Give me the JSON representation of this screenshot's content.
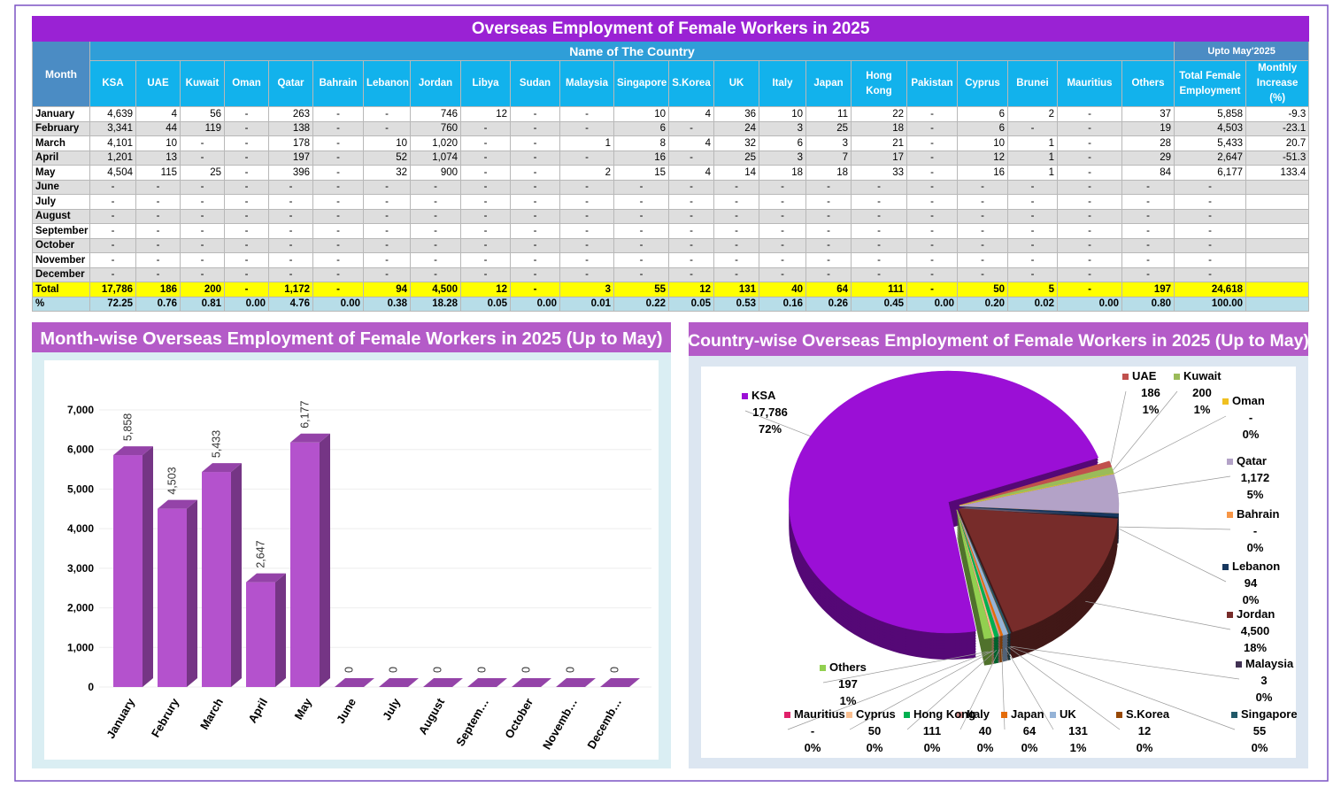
{
  "table": {
    "title": "Overseas Employment of Female Workers in 2025",
    "header": {
      "month": "Month",
      "group": "Name of The Country",
      "upto": "Upto May'2025",
      "columns": [
        "KSA",
        "UAE",
        "Kuwait",
        "Oman",
        "Qatar",
        "Bahrain",
        "Lebanon",
        "Jordan",
        "Libya",
        "Sudan",
        "Malaysia",
        "Singapore",
        "S.Korea",
        "UK",
        "Italy",
        "Japan",
        "Hong Kong",
        "Pakistan",
        "Cyprus",
        "Brunei",
        "Mauritius",
        "Others",
        "Total Female Employment",
        "Monthly Increase (%)"
      ]
    },
    "rows": [
      {
        "label": "January",
        "cells": [
          "4,639",
          "4",
          "56",
          "-",
          "263",
          "-",
          "-",
          "746",
          "12",
          "-",
          "-",
          "10",
          "4",
          "36",
          "10",
          "11",
          "22",
          "-",
          "6",
          "2",
          "-",
          "37",
          "5,858",
          "-9.3"
        ]
      },
      {
        "label": "February",
        "cells": [
          "3,341",
          "44",
          "119",
          "-",
          "138",
          "-",
          "-",
          "760",
          "-",
          "-",
          "-",
          "6",
          "-",
          "24",
          "3",
          "25",
          "18",
          "-",
          "6",
          "-",
          "-",
          "19",
          "4,503",
          "-23.1"
        ]
      },
      {
        "label": "March",
        "cells": [
          "4,101",
          "10",
          "-",
          "-",
          "178",
          "-",
          "10",
          "1,020",
          "-",
          "-",
          "1",
          "8",
          "4",
          "32",
          "6",
          "3",
          "21",
          "-",
          "10",
          "1",
          "-",
          "28",
          "5,433",
          "20.7"
        ]
      },
      {
        "label": "April",
        "cells": [
          "1,201",
          "13",
          "-",
          "-",
          "197",
          "-",
          "52",
          "1,074",
          "-",
          "-",
          "-",
          "16",
          "-",
          "25",
          "3",
          "7",
          "17",
          "-",
          "12",
          "1",
          "-",
          "29",
          "2,647",
          "-51.3"
        ]
      },
      {
        "label": "May",
        "cells": [
          "4,504",
          "115",
          "25",
          "-",
          "396",
          "-",
          "32",
          "900",
          "-",
          "-",
          "2",
          "15",
          "4",
          "14",
          "18",
          "18",
          "33",
          "-",
          "16",
          "1",
          "-",
          "84",
          "6,177",
          "133.4"
        ]
      },
      {
        "label": "June",
        "cells": [
          "-",
          "-",
          "-",
          "-",
          "-",
          "-",
          "-",
          "-",
          "-",
          "-",
          "-",
          "-",
          "-",
          "-",
          "-",
          "-",
          "-",
          "-",
          "-",
          "-",
          "-",
          "-",
          "-"
        ]
      },
      {
        "label": "July",
        "cells": [
          "-",
          "-",
          "-",
          "-",
          "-",
          "-",
          "-",
          "-",
          "-",
          "-",
          "-",
          "-",
          "-",
          "-",
          "-",
          "-",
          "-",
          "-",
          "-",
          "-",
          "-",
          "-",
          "-"
        ]
      },
      {
        "label": "August",
        "cells": [
          "-",
          "-",
          "-",
          "-",
          "-",
          "-",
          "-",
          "-",
          "-",
          "-",
          "-",
          "-",
          "-",
          "-",
          "-",
          "-",
          "-",
          "-",
          "-",
          "-",
          "-",
          "-",
          "-"
        ]
      },
      {
        "label": "September",
        "cells": [
          "-",
          "-",
          "-",
          "-",
          "-",
          "-",
          "-",
          "-",
          "-",
          "-",
          "-",
          "-",
          "-",
          "-",
          "-",
          "-",
          "-",
          "-",
          "-",
          "-",
          "-",
          "-",
          "-"
        ]
      },
      {
        "label": "October",
        "cells": [
          "-",
          "-",
          "-",
          "-",
          "-",
          "-",
          "-",
          "-",
          "-",
          "-",
          "-",
          "-",
          "-",
          "-",
          "-",
          "-",
          "-",
          "-",
          "-",
          "-",
          "-",
          "-",
          "-"
        ]
      },
      {
        "label": "November",
        "cells": [
          "-",
          "-",
          "-",
          "-",
          "-",
          "-",
          "-",
          "-",
          "-",
          "-",
          "-",
          "-",
          "-",
          "-",
          "-",
          "-",
          "-",
          "-",
          "-",
          "-",
          "-",
          "-",
          "-"
        ]
      },
      {
        "label": "December",
        "cells": [
          "-",
          "-",
          "-",
          "-",
          "-",
          "-",
          "-",
          "-",
          "-",
          "-",
          "-",
          "-",
          "-",
          "-",
          "-",
          "-",
          "-",
          "-",
          "-",
          "-",
          "-",
          "-",
          "-"
        ]
      },
      {
        "label": "Total",
        "cells": [
          "17,786",
          "186",
          "200",
          "-",
          "1,172",
          "-",
          "94",
          "4,500",
          "12",
          "-",
          "3",
          "55",
          "12",
          "131",
          "40",
          "64",
          "111",
          "-",
          "50",
          "5",
          "-",
          "197",
          "24,618"
        ]
      },
      {
        "label": "%",
        "cells": [
          "72.25",
          "0.76",
          "0.81",
          "0.00",
          "4.76",
          "0.00",
          "0.38",
          "18.28",
          "0.05",
          "0.00",
          "0.01",
          "0.22",
          "0.05",
          "0.53",
          "0.16",
          "0.26",
          "0.45",
          "0.00",
          "0.20",
          "0.02",
          "0.00",
          "0.80",
          "100.00"
        ]
      }
    ]
  },
  "chart_data": [
    {
      "type": "bar",
      "title": "Month-wise Overseas Employment of Female Workers in 2025 (Up to May)",
      "categories": [
        "January",
        "Februry",
        "March",
        "April",
        "May",
        "June",
        "July",
        "August",
        "Septem…",
        "October",
        "Novemb…",
        "Decemb…"
      ],
      "values": [
        5858,
        4503,
        5433,
        2647,
        6177,
        0,
        0,
        0,
        0,
        0,
        0,
        0
      ],
      "value_labels": [
        "5,858",
        "4,503",
        "5,433",
        "2,647",
        "6,177",
        "0",
        "0",
        "0",
        "0",
        "0",
        "0",
        "0"
      ],
      "color": "#b452cd",
      "ylim": [
        0,
        7000
      ],
      "yticks": [
        0,
        {
          "value": 1000,
          "label": "1,000"
        },
        {
          "value": 2000,
          "label": "2,000"
        },
        {
          "value": 3000,
          "label": "3,000"
        },
        {
          "value": 4000,
          "label": "4,000"
        },
        {
          "value": 5000,
          "label": "5,000"
        },
        {
          "value": 6000,
          "label": "6,000"
        },
        {
          "value": 7000,
          "label": "7,000"
        }
      ],
      "grid": true
    },
    {
      "type": "pie",
      "title": "Country-wise Overseas Employment of Female Workers in 2025 (Up to May)",
      "categories": [
        "KSA",
        "UAE",
        "Kuwait",
        "Oman",
        "Qatar",
        "Bahrain",
        "Lebanon",
        "Jordan",
        "Malaysia",
        "Singapore",
        "S.Korea",
        "UK",
        "Japan",
        "Italy",
        "Hong Kong",
        "Cyprus",
        "Mauritius",
        "Others"
      ],
      "values": [
        17786,
        186,
        200,
        0,
        1172,
        0,
        94,
        4500,
        3,
        55,
        12,
        131,
        64,
        40,
        111,
        50,
        0,
        197
      ],
      "value_labels": [
        "17,786",
        "186",
        "200",
        "-",
        "1,172",
        "-",
        "94",
        "4,500",
        "3",
        "55",
        "12",
        "131",
        "64",
        "40",
        "111",
        "50",
        "-",
        "197"
      ],
      "percent_labels": [
        "72%",
        "1%",
        "1%",
        "0%",
        "5%",
        "0%",
        "0%",
        "18%",
        "0%",
        "0%",
        "0%",
        "1%",
        "0%",
        "0%",
        "0%",
        "0%",
        "0%",
        "1%"
      ],
      "colors": [
        "#9b0fd6",
        "#c0504d",
        "#9bbb59",
        "#f0c020",
        "#b3a2c7",
        "#f79646",
        "#17375e",
        "#772c2a",
        "#403152",
        "#215968",
        "#974806",
        "#95b3d7",
        "#e46c0a",
        "#d99694",
        "#00b050",
        "#fabf8f",
        "#e0206a",
        "#92d050"
      ]
    }
  ]
}
